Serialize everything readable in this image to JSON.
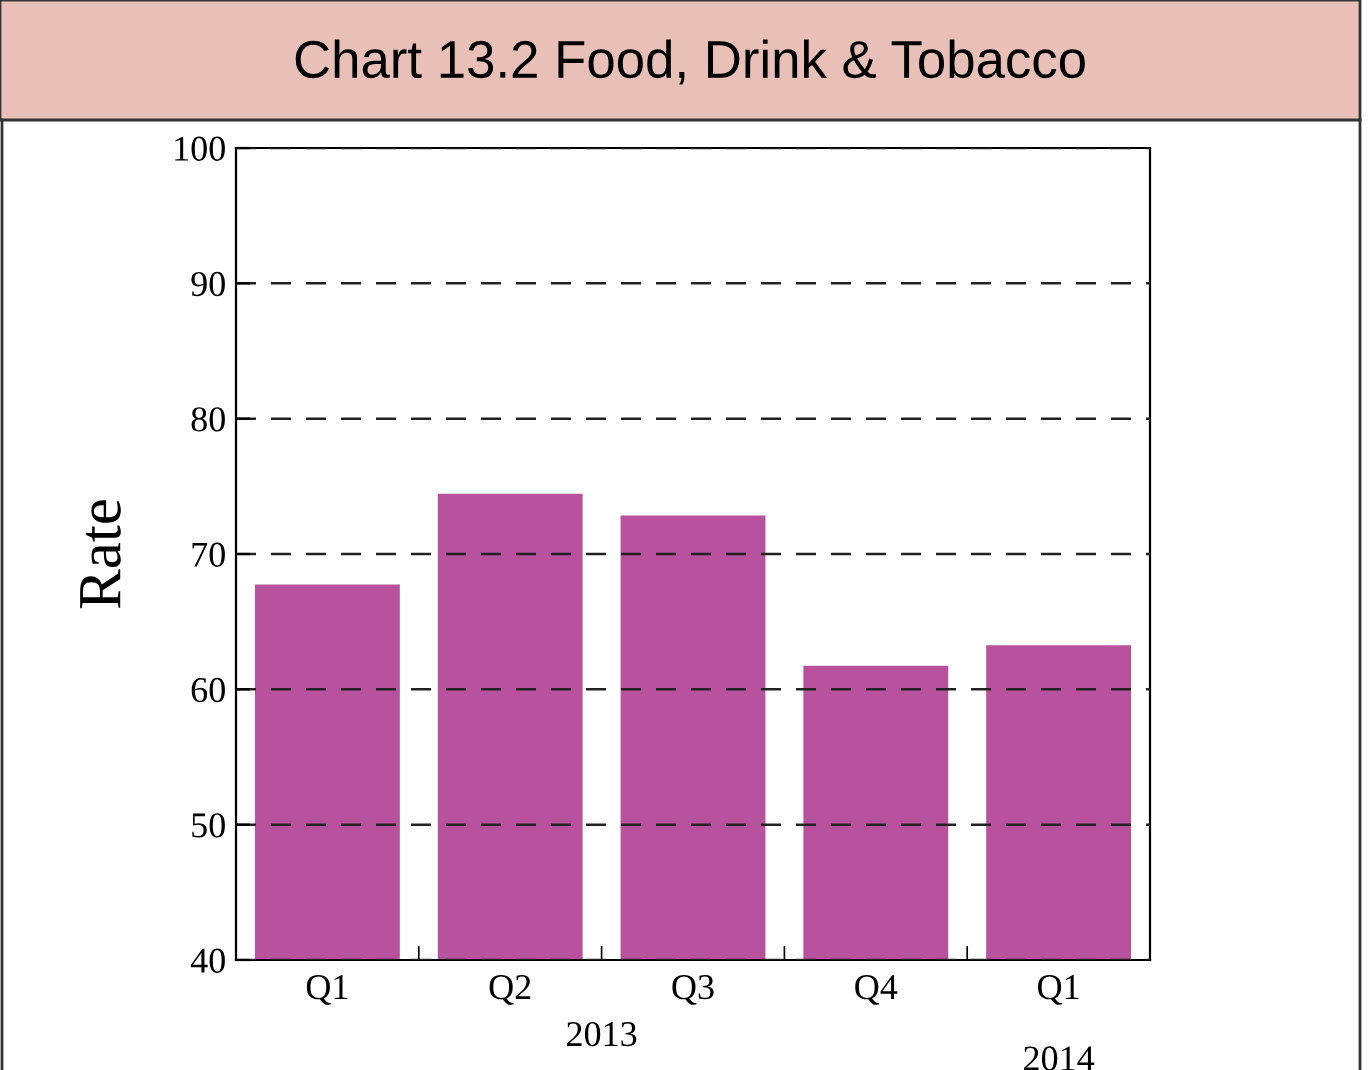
{
  "chart_data": {
    "type": "bar",
    "title": "Chart 13.2 Food, Drink & Tobacco",
    "ylabel": "Rate",
    "categories": [
      "Q1",
      "Q2",
      "Q3",
      "Q4",
      "Q1"
    ],
    "values": [
      67.8,
      74.5,
      72.9,
      61.8,
      63.3
    ],
    "color": "#b9529e",
    "ylim": [
      40,
      100
    ],
    "yticks": [
      40,
      50,
      60,
      70,
      80,
      90,
      100
    ],
    "grid": "y",
    "annotations": [
      "2013",
      "2014"
    ]
  }
}
